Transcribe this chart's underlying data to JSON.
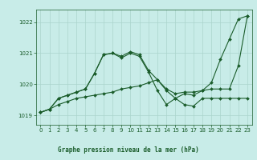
{
  "title": "Graphe pression niveau de la mer (hPa)",
  "bg_color": "#c8ece8",
  "grid_color": "#aad4cc",
  "line_color": "#1a5c2a",
  "xlim": [
    -0.5,
    23.5
  ],
  "ylim": [
    1018.7,
    1022.4
  ],
  "yticks": [
    1019,
    1020,
    1021,
    1022
  ],
  "xticks": [
    0,
    1,
    2,
    3,
    4,
    5,
    6,
    7,
    8,
    9,
    10,
    11,
    12,
    13,
    14,
    15,
    16,
    17,
    18,
    19,
    20,
    21,
    22,
    23
  ],
  "series1": {
    "x": [
      0,
      1,
      2,
      3,
      4,
      5,
      6,
      7,
      8,
      9,
      10,
      11,
      12,
      13,
      14,
      15,
      16,
      17,
      18,
      19,
      20,
      21,
      22,
      23
    ],
    "y": [
      1019.1,
      1019.2,
      1019.35,
      1019.45,
      1019.55,
      1019.6,
      1019.65,
      1019.7,
      1019.75,
      1019.85,
      1019.9,
      1019.95,
      1020.05,
      1020.15,
      1019.85,
      1019.7,
      1019.75,
      1019.75,
      1019.8,
      1019.85,
      1019.85,
      1019.85,
      1020.6,
      1022.2
    ]
  },
  "series2": {
    "x": [
      0,
      1,
      2,
      3,
      4,
      5,
      6,
      7,
      8,
      9,
      10,
      11,
      12,
      13,
      14,
      15,
      16,
      17,
      18,
      19,
      20,
      21,
      22,
      23
    ],
    "y": [
      1019.1,
      1019.2,
      1019.55,
      1019.65,
      1019.75,
      1019.85,
      1020.35,
      1020.95,
      1021.0,
      1020.9,
      1021.05,
      1020.95,
      1020.45,
      1020.15,
      1019.8,
      1019.55,
      1019.7,
      1019.65,
      1019.8,
      1020.05,
      1020.8,
      1021.45,
      1022.1,
      1022.2
    ]
  },
  "series3": {
    "x": [
      0,
      1,
      2,
      3,
      4,
      5,
      6,
      7,
      8,
      9,
      10,
      11,
      12,
      13,
      14,
      15,
      16,
      17,
      18,
      19,
      20,
      21,
      22,
      23
    ],
    "y": [
      1019.1,
      1019.2,
      1019.55,
      1019.65,
      1019.75,
      1019.85,
      1020.35,
      1020.95,
      1021.0,
      1020.85,
      1021.0,
      1020.9,
      1020.4,
      1019.8,
      1019.35,
      1019.55,
      1019.35,
      1019.3,
      1019.55,
      1019.55,
      1019.55,
      1019.55,
      1019.55,
      1019.55
    ]
  }
}
